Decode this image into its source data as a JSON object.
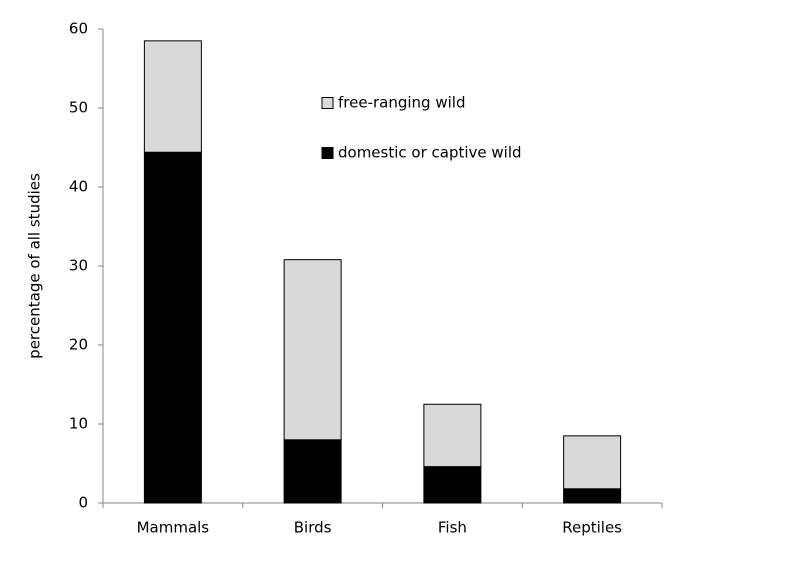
{
  "chart_data": {
    "type": "stacked-bar",
    "y_label": "percentage of all studies",
    "categories": [
      "Mammals",
      "Birds",
      "Fish",
      "Reptiles"
    ],
    "series": [
      {
        "name": "domestic or captive wild",
        "color": "#000000",
        "values": [
          44.4,
          8.0,
          4.6,
          1.8
        ]
      },
      {
        "name": "free-ranging wild",
        "color": "#d9d9d9",
        "values": [
          14.1,
          22.8,
          7.9,
          6.7
        ]
      }
    ],
    "ylim": [
      0,
      60
    ],
    "yticks": [
      0,
      10,
      20,
      30,
      40,
      50,
      60
    ],
    "grid": false
  }
}
